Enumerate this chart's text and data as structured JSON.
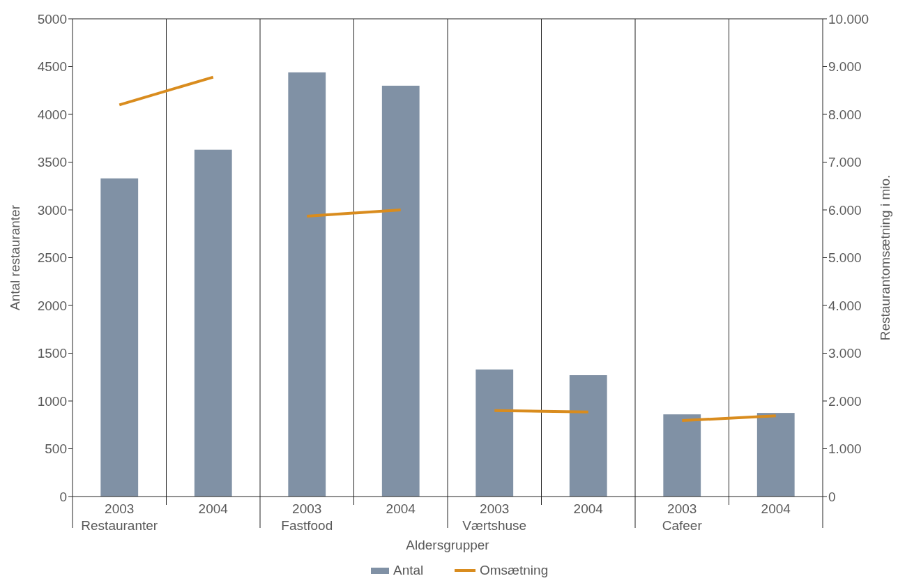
{
  "chart_data": {
    "type": "bar",
    "xlabel": "Aldersgrupper",
    "ylabel": "Antal restauranter",
    "y2label": "Restaurantomsætning i mio.",
    "categories": [
      "2003\nRestauranter",
      "2004",
      "2003\nFastfood",
      "2004",
      "2003\nVærtshuse",
      "2004",
      "2003\nCafeer",
      "2004"
    ],
    "series": [
      {
        "name": "Antal",
        "color": "#8091a5",
        "values": [
          3330,
          3630,
          4440,
          4300,
          1330,
          1270,
          860,
          875
        ]
      },
      {
        "name": "Omsætning",
        "type": "line",
        "axis": "y2",
        "color": "#d98c1e",
        "values": [
          8200,
          8780,
          null,
          null,
          null,
          null,
          null,
          null
        ]
      },
      {
        "type": "line",
        "axis": "y2",
        "color": "#d98c1e",
        "values": [
          null,
          null,
          5870,
          6000,
          null,
          null,
          null,
          null
        ]
      },
      {
        "type": "line",
        "axis": "y2",
        "color": "#d98c1e",
        "values": [
          null,
          null,
          null,
          null,
          1800,
          1770,
          null,
          null
        ]
      },
      {
        "type": "line",
        "axis": "y2",
        "color": "#d98c1e",
        "values": [
          null,
          null,
          null,
          null,
          null,
          null,
          1590,
          1690
        ]
      }
    ],
    "ylim": [
      0,
      5000
    ],
    "yticks": [
      0,
      500,
      1000,
      1500,
      2000,
      2500,
      3000,
      3500,
      4000,
      4500,
      5000
    ],
    "y2lim": [
      0,
      10000
    ],
    "y2ticks": [
      {
        "value": 0,
        "label": "0"
      },
      {
        "value": 1000,
        "label": "1.000"
      },
      {
        "value": 2000,
        "label": "2.000"
      },
      {
        "value": 3000,
        "label": "3.000"
      },
      {
        "value": 4000,
        "label": "4.000"
      },
      {
        "value": 5000,
        "label": "5.000"
      },
      {
        "value": 6000,
        "label": "6.000"
      },
      {
        "value": 7000,
        "label": "7.000"
      },
      {
        "value": 8000,
        "label": "8.000"
      },
      {
        "value": 9000,
        "label": "9.000"
      },
      {
        "value": 10000,
        "label": "10.000"
      }
    ],
    "grid": "x",
    "legend": "bottom",
    "line_style": "solid",
    "marker": "none"
  }
}
